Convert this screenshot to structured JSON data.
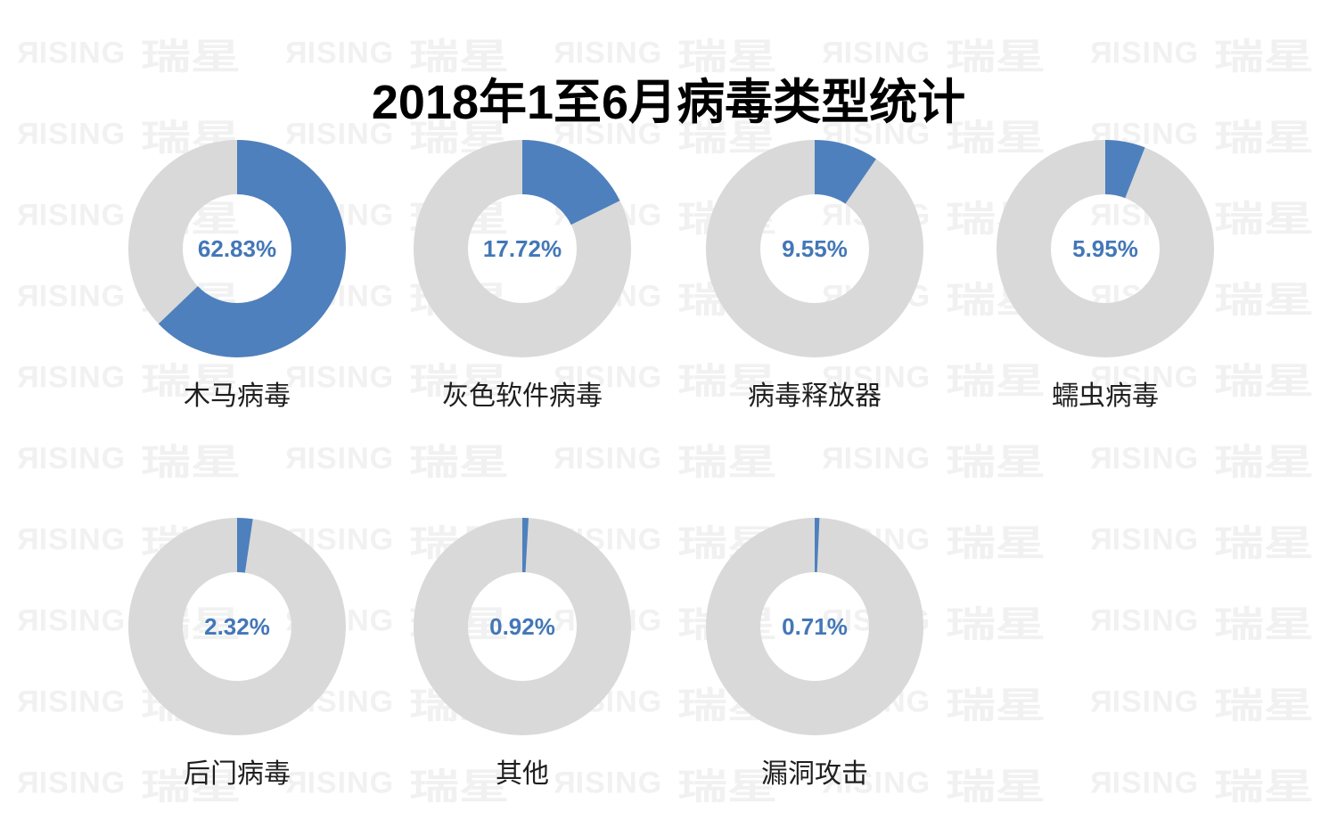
{
  "watermark": {
    "en": "RISING",
    "cn": "瑞星",
    "color": "#f1f1f1"
  },
  "colors": {
    "slice": "#4e80bd",
    "track": "#d9d9d9",
    "percent_text": "#4377b7",
    "label_text": "#1f1f1f",
    "title_text": "#000000",
    "background": "#ffffff"
  },
  "chart_data": {
    "type": "pie",
    "subtype": "donut-multiples",
    "title": "2018年1至6月病毒类型统计",
    "unit": "percent",
    "series": [
      {
        "label": "木马病毒",
        "value": 62.83,
        "display": "62.83%"
      },
      {
        "label": "灰色软件病毒",
        "value": 17.72,
        "display": "17.72%"
      },
      {
        "label": "病毒释放器",
        "value": 9.55,
        "display": "9.55%"
      },
      {
        "label": "蠕虫病毒",
        "value": 5.95,
        "display": "5.95%"
      },
      {
        "label": "后门病毒",
        "value": 2.32,
        "display": "2.32%"
      },
      {
        "label": "其他",
        "value": 0.92,
        "display": "0.92%"
      },
      {
        "label": "漏洞攻击",
        "value": 0.71,
        "display": "0.71%"
      }
    ],
    "layout": {
      "grid_rows": [
        4,
        3
      ],
      "donut_hole_ratio": 0.5,
      "start_angle_deg": 0,
      "direction": "clockwise",
      "value_label_position": "center",
      "category_label_position": "below"
    }
  }
}
